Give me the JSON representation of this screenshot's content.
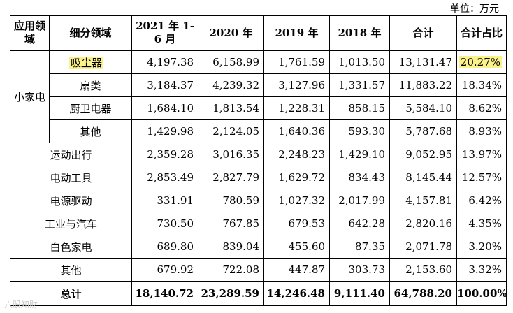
{
  "unit_label": "单位：万元",
  "headers": {
    "field": "应用领域",
    "subfield": "细分领域",
    "h2021": "2021 年 1-6 月",
    "h2020": "2020 年",
    "h2019": "2019 年",
    "h2018": "2018 年",
    "total": "合计",
    "ratio": "合计占比"
  },
  "small_appliance": {
    "label": "小家电",
    "rows": [
      {
        "name": "吸尘器",
        "v2021": "4,197.38",
        "v2020": "6,158.99",
        "v2019": "1,761.59",
        "v2018": "1,013.50",
        "total": "13,131.47",
        "ratio": "20.27%"
      },
      {
        "name": "扇类",
        "v2021": "3,184.37",
        "v2020": "4,239.32",
        "v2019": "3,127.96",
        "v2018": "1,331.57",
        "total": "11,883.22",
        "ratio": "18.34%"
      },
      {
        "name": "厨卫电器",
        "v2021": "1,684.10",
        "v2020": "1,813.54",
        "v2019": "1,228.31",
        "v2018": "858.15",
        "total": "5,584.10",
        "ratio": "8.62%"
      },
      {
        "name": "其他",
        "v2021": "1,429.98",
        "v2020": "2,124.05",
        "v2019": "1,640.36",
        "v2018": "593.30",
        "total": "5,787.68",
        "ratio": "8.93%"
      }
    ]
  },
  "other_rows": [
    {
      "name": "运动出行",
      "v2021": "2,359.28",
      "v2020": "3,016.35",
      "v2019": "2,248.23",
      "v2018": "1,429.10",
      "total": "9,052.95",
      "ratio": "13.97%"
    },
    {
      "name": "电动工具",
      "v2021": "2,853.49",
      "v2020": "2,827.79",
      "v2019": "1,629.72",
      "v2018": "834.43",
      "total": "8,145.44",
      "ratio": "12.57%"
    },
    {
      "name": "电源驱动",
      "v2021": "331.91",
      "v2020": "780.59",
      "v2019": "1,027.32",
      "v2018": "2,017.99",
      "total": "4,157.81",
      "ratio": "6.42%"
    },
    {
      "name": "工业与汽车",
      "v2021": "730.50",
      "v2020": "767.85",
      "v2019": "679.53",
      "v2018": "642.28",
      "total": "2,820.16",
      "ratio": "4.35%"
    },
    {
      "name": "白色家电",
      "v2021": "689.80",
      "v2020": "839.04",
      "v2019": "455.60",
      "v2018": "87.35",
      "total": "2,071.78",
      "ratio": "3.20%"
    },
    {
      "name": "其他",
      "v2021": "679.92",
      "v2020": "722.08",
      "v2019": "447.87",
      "v2018": "303.73",
      "total": "2,153.60",
      "ratio": "3.32%"
    }
  ],
  "grand_total": {
    "name": "总计",
    "v2021": "18,140.72",
    "v2020": "23,289.59",
    "v2019": "14,246.48",
    "v2018": "9,111.40",
    "total": "64,788.20",
    "ratio": "100.00%"
  },
  "watermark": "六股知财"
}
